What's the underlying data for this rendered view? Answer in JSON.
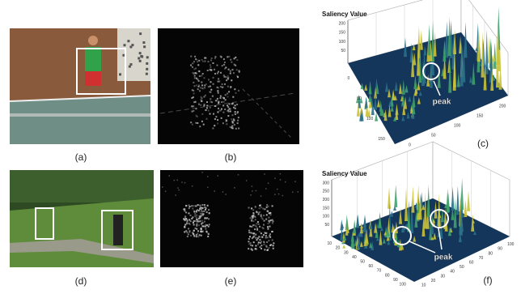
{
  "panels": [
    {
      "label": "(a)"
    },
    {
      "label": "(b)"
    },
    {
      "label": "(c)"
    },
    {
      "label": "(d)"
    },
    {
      "label": "(e)"
    },
    {
      "label": "(f)"
    }
  ],
  "plots": [
    {
      "title": "Saliency Value",
      "peaks": [
        "peak"
      ],
      "z_ticks": [
        "200",
        "150",
        "100",
        "50"
      ],
      "left_ticks": [
        "0",
        "50",
        "100",
        "150"
      ],
      "right_ticks": [
        "0",
        "50",
        "100",
        "150",
        "200"
      ]
    },
    {
      "title": "Saliency Value",
      "peaks": [
        "peak"
      ],
      "z_ticks": [
        "300",
        "250",
        "200",
        "150",
        "100",
        "50"
      ],
      "left_ticks": [
        "10",
        "20",
        "30",
        "40",
        "50",
        "60",
        "70",
        "80",
        "90",
        "100"
      ],
      "right_ticks": [
        "10",
        "20",
        "30",
        "40",
        "50",
        "60",
        "70",
        "80",
        "90",
        "100"
      ]
    }
  ]
}
